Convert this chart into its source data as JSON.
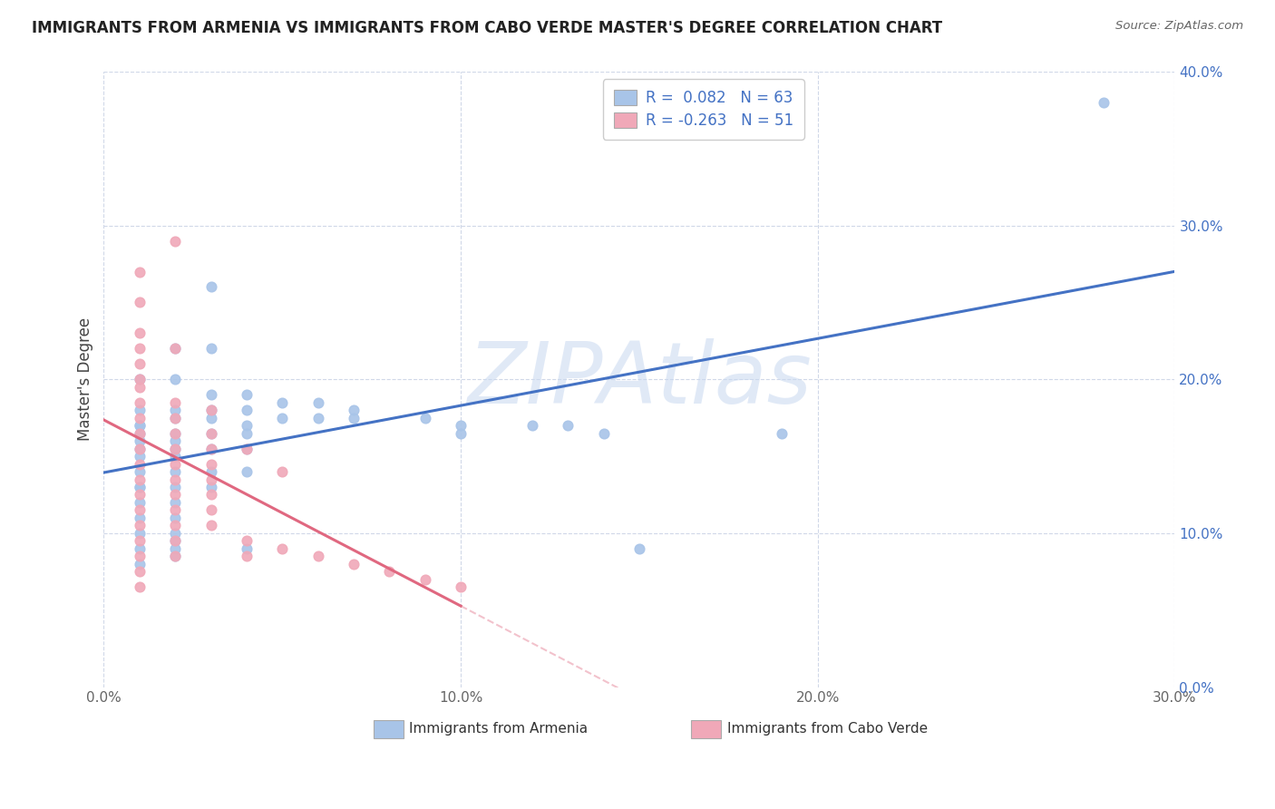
{
  "title": "IMMIGRANTS FROM ARMENIA VS IMMIGRANTS FROM CABO VERDE MASTER'S DEGREE CORRELATION CHART",
  "source": "Source: ZipAtlas.com",
  "ylabel": "Master's Degree",
  "xlim": [
    0,
    0.3
  ],
  "ylim": [
    0,
    0.4
  ],
  "armenia_color": "#a8c4e8",
  "cabo_color": "#f0a8b8",
  "armenia_line_color": "#4472c4",
  "cabo_line_color": "#e06880",
  "legend_text_color": "#4472c4",
  "armenia_R": 0.082,
  "armenia_N": 63,
  "cabo_R": -0.263,
  "cabo_N": 51,
  "legend_label_armenia": "Immigrants from Armenia",
  "legend_label_cabo": "Immigrants from Cabo Verde",
  "armenia_scatter": [
    [
      0.01,
      0.18
    ],
    [
      0.01,
      0.17
    ],
    [
      0.01,
      0.16
    ],
    [
      0.01,
      0.15
    ],
    [
      0.01,
      0.14
    ],
    [
      0.01,
      0.13
    ],
    [
      0.01,
      0.12
    ],
    [
      0.01,
      0.11
    ],
    [
      0.01,
      0.1
    ],
    [
      0.01,
      0.09
    ],
    [
      0.01,
      0.08
    ],
    [
      0.01,
      0.165
    ],
    [
      0.01,
      0.155
    ],
    [
      0.01,
      0.13
    ],
    [
      0.01,
      0.2
    ],
    [
      0.01,
      0.17
    ],
    [
      0.02,
      0.22
    ],
    [
      0.02,
      0.2
    ],
    [
      0.02,
      0.18
    ],
    [
      0.02,
      0.175
    ],
    [
      0.02,
      0.165
    ],
    [
      0.02,
      0.16
    ],
    [
      0.02,
      0.155
    ],
    [
      0.02,
      0.15
    ],
    [
      0.02,
      0.14
    ],
    [
      0.02,
      0.13
    ],
    [
      0.02,
      0.12
    ],
    [
      0.02,
      0.11
    ],
    [
      0.02,
      0.1
    ],
    [
      0.02,
      0.095
    ],
    [
      0.02,
      0.09
    ],
    [
      0.02,
      0.085
    ],
    [
      0.03,
      0.26
    ],
    [
      0.03,
      0.22
    ],
    [
      0.03,
      0.19
    ],
    [
      0.03,
      0.18
    ],
    [
      0.03,
      0.175
    ],
    [
      0.03,
      0.165
    ],
    [
      0.03,
      0.155
    ],
    [
      0.03,
      0.14
    ],
    [
      0.03,
      0.13
    ],
    [
      0.04,
      0.19
    ],
    [
      0.04,
      0.18
    ],
    [
      0.04,
      0.17
    ],
    [
      0.04,
      0.165
    ],
    [
      0.04,
      0.155
    ],
    [
      0.04,
      0.14
    ],
    [
      0.04,
      0.09
    ],
    [
      0.05,
      0.185
    ],
    [
      0.05,
      0.175
    ],
    [
      0.06,
      0.185
    ],
    [
      0.06,
      0.175
    ],
    [
      0.07,
      0.18
    ],
    [
      0.07,
      0.175
    ],
    [
      0.09,
      0.175
    ],
    [
      0.1,
      0.17
    ],
    [
      0.1,
      0.165
    ],
    [
      0.12,
      0.17
    ],
    [
      0.13,
      0.17
    ],
    [
      0.14,
      0.165
    ],
    [
      0.19,
      0.165
    ],
    [
      0.28,
      0.38
    ],
    [
      0.15,
      0.09
    ]
  ],
  "cabo_scatter": [
    [
      0.01,
      0.27
    ],
    [
      0.01,
      0.25
    ],
    [
      0.01,
      0.23
    ],
    [
      0.01,
      0.22
    ],
    [
      0.01,
      0.21
    ],
    [
      0.01,
      0.2
    ],
    [
      0.01,
      0.195
    ],
    [
      0.01,
      0.185
    ],
    [
      0.01,
      0.175
    ],
    [
      0.01,
      0.165
    ],
    [
      0.01,
      0.155
    ],
    [
      0.01,
      0.145
    ],
    [
      0.01,
      0.135
    ],
    [
      0.01,
      0.125
    ],
    [
      0.01,
      0.115
    ],
    [
      0.01,
      0.105
    ],
    [
      0.01,
      0.095
    ],
    [
      0.01,
      0.085
    ],
    [
      0.01,
      0.075
    ],
    [
      0.01,
      0.065
    ],
    [
      0.02,
      0.29
    ],
    [
      0.02,
      0.22
    ],
    [
      0.02,
      0.185
    ],
    [
      0.02,
      0.175
    ],
    [
      0.02,
      0.165
    ],
    [
      0.02,
      0.155
    ],
    [
      0.02,
      0.145
    ],
    [
      0.02,
      0.135
    ],
    [
      0.02,
      0.125
    ],
    [
      0.02,
      0.115
    ],
    [
      0.02,
      0.105
    ],
    [
      0.02,
      0.095
    ],
    [
      0.02,
      0.085
    ],
    [
      0.03,
      0.18
    ],
    [
      0.03,
      0.165
    ],
    [
      0.03,
      0.155
    ],
    [
      0.03,
      0.145
    ],
    [
      0.03,
      0.135
    ],
    [
      0.03,
      0.125
    ],
    [
      0.03,
      0.115
    ],
    [
      0.03,
      0.105
    ],
    [
      0.04,
      0.155
    ],
    [
      0.04,
      0.095
    ],
    [
      0.04,
      0.085
    ],
    [
      0.05,
      0.14
    ],
    [
      0.05,
      0.09
    ],
    [
      0.06,
      0.085
    ],
    [
      0.07,
      0.08
    ],
    [
      0.08,
      0.075
    ],
    [
      0.09,
      0.07
    ],
    [
      0.1,
      0.065
    ]
  ],
  "watermark": "ZIPAtlas",
  "watermark_color": "#c8d8f0",
  "background_color": "#ffffff",
  "grid_color": "#d0d8e8"
}
